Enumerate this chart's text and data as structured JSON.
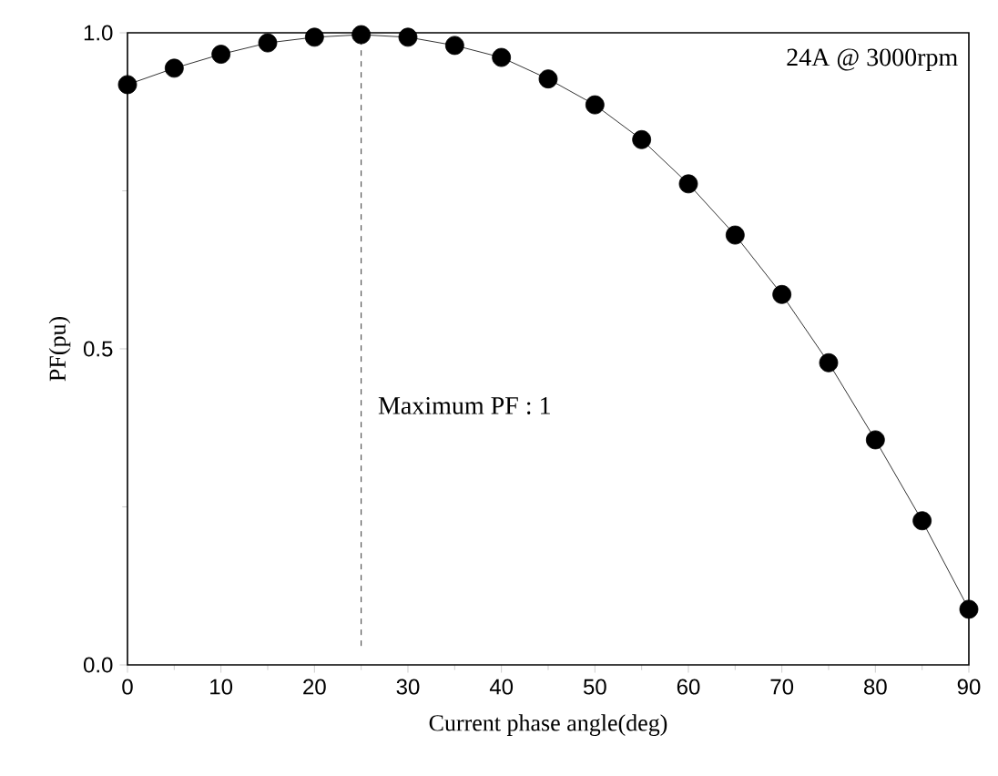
{
  "chart_data": {
    "type": "line",
    "xlabel": "Current phase angle(deg)",
    "ylabel": "PF(pu)",
    "x": [
      0,
      5,
      10,
      15,
      20,
      25,
      30,
      35,
      40,
      45,
      50,
      55,
      60,
      65,
      70,
      75,
      80,
      85,
      90
    ],
    "series": [
      {
        "color": "#000000",
        "values": [
          0.918,
          0.944,
          0.966,
          0.984,
          0.993,
          0.997,
          0.993,
          0.98,
          0.961,
          0.927,
          0.886,
          0.831,
          0.761,
          0.68,
          0.586,
          0.478,
          0.356,
          0.228,
          0.088
        ]
      }
    ],
    "marker": "circle",
    "line_style": "solid",
    "grid": false,
    "xlim": [
      0,
      90
    ],
    "ylim": [
      0,
      1
    ],
    "xticks": [
      0,
      10,
      20,
      30,
      40,
      50,
      60,
      70,
      80,
      90
    ],
    "yticks": [
      {
        "value": 0,
        "label": "0.0"
      },
      {
        "value": 0.5,
        "label": "0.5"
      },
      {
        "value": 1,
        "label": "1.0"
      }
    ],
    "ref_lines": [
      {
        "axis": "x",
        "value": 25,
        "line_style": "dashed",
        "color": "#000000"
      }
    ],
    "annotations": [
      "24A @ 3000rpm",
      "Maximum PF : 1"
    ]
  }
}
